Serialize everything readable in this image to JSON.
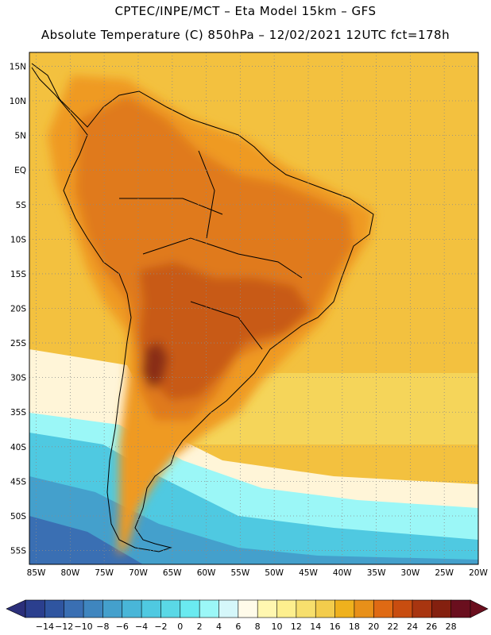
{
  "title": {
    "line1": "CPTEC/INPE/MCT –  Eta Model 15km – GFS",
    "line2": "Absolute Temperature (C) 850hPa – 12/02/2021 12UTC fct=178h"
  },
  "map": {
    "lat_labels": [
      "15N",
      "10N",
      "5N",
      "EQ",
      "5S",
      "10S",
      "15S",
      "20S",
      "25S",
      "30S",
      "35S",
      "40S",
      "45S",
      "50S",
      "55S"
    ],
    "lon_labels": [
      "85W",
      "80W",
      "75W",
      "70W",
      "65W",
      "60W",
      "55W",
      "50W",
      "45W",
      "40W",
      "35W",
      "30W",
      "25W",
      "20W"
    ],
    "lat_min": -57,
    "lat_max": 17,
    "lon_min": -86,
    "lon_max": -20
  },
  "colorbar": {
    "labels": [
      "-14",
      "-12",
      "-10",
      "-8",
      "-6",
      "-4",
      "-2",
      "0",
      "2",
      "4",
      "6",
      "8",
      "10",
      "12",
      "14",
      "16",
      "18",
      "20",
      "22",
      "24",
      "26",
      "28"
    ],
    "colors": [
      "#2b3f8e",
      "#2f55a0",
      "#3a6fb3",
      "#3f86bf",
      "#44a0cc",
      "#49b6d8",
      "#4fc9e1",
      "#5ad8e6",
      "#6aeaf0",
      "#9bf7f7",
      "#d5f7fa",
      "#fffbea",
      "#fff7b0",
      "#fdef8e",
      "#f7df6d",
      "#f3cc4c",
      "#efb11d",
      "#e89019",
      "#df6a14",
      "#c84d10",
      "#a83510",
      "#84200f",
      "#6a0f1e"
    ],
    "left_arrow_color": "#2b2f7a",
    "right_arrow_color": "#6a0f1e"
  },
  "field_colors": {
    "ocean_warm": "#f3c13f",
    "ocean_mid": "#f5d55a",
    "ocean_pale": "#fbe98c",
    "cream": "#fff5d8",
    "cold1": "#9bf7f7",
    "cold2": "#4fc9e1",
    "cold3": "#44a0cc",
    "cold4": "#3a6fb3",
    "land_warm": "#ef9a22",
    "land_hot": "#e07a1e",
    "land_hotter": "#c85a14",
    "land_hottest": "#8a2f14"
  }
}
